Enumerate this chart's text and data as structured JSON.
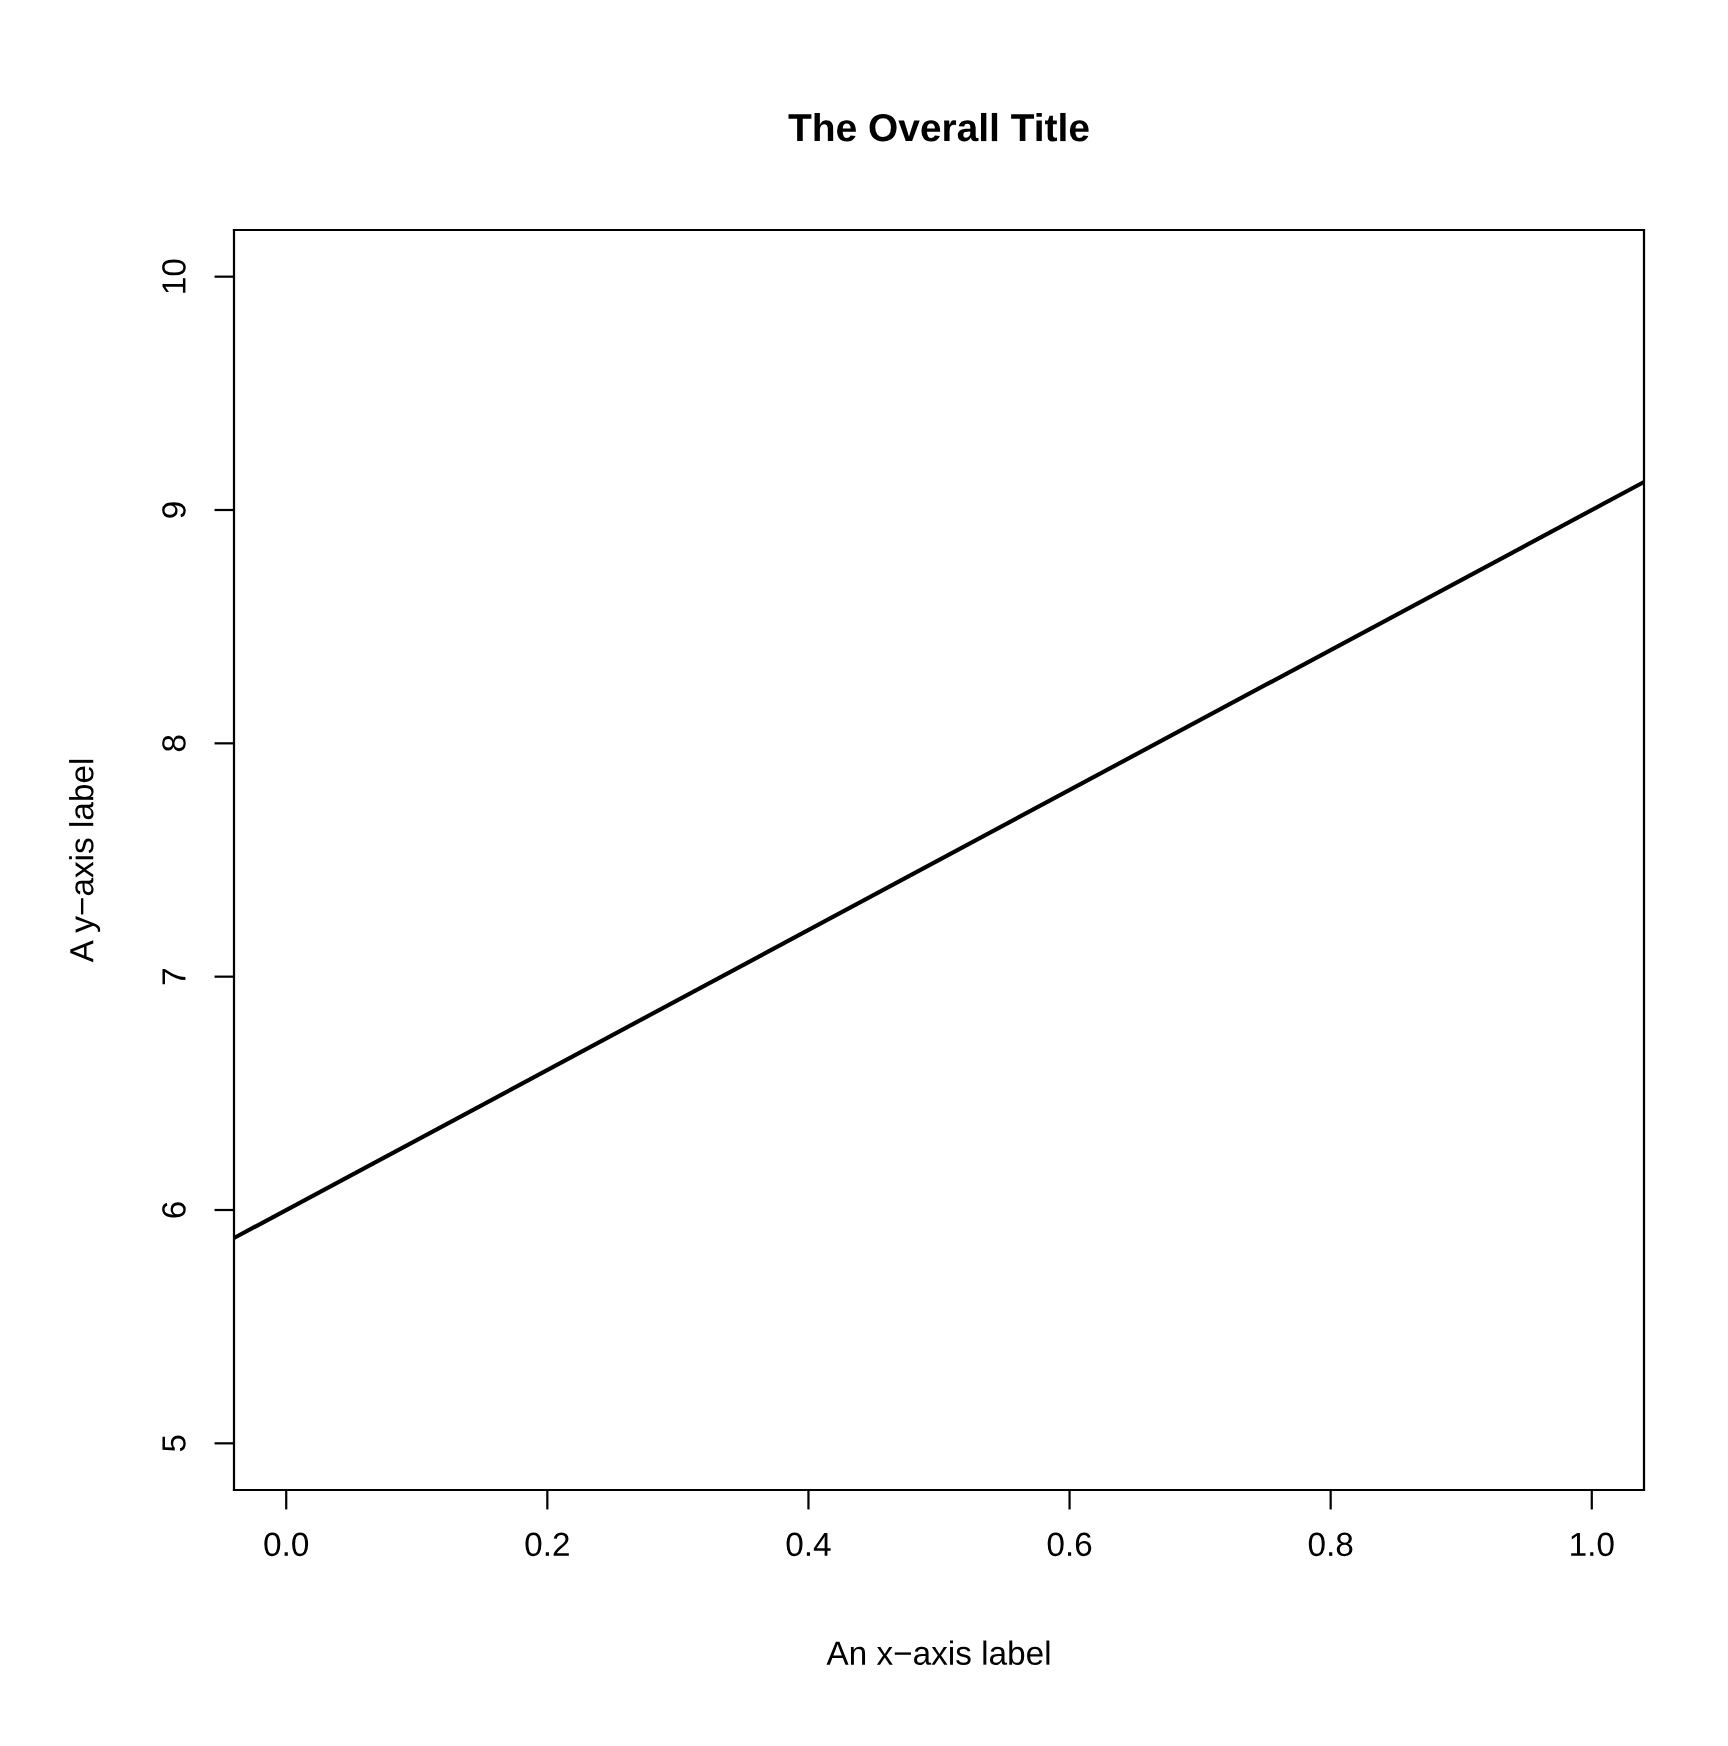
{
  "chart_data": {
    "type": "line",
    "title": "The Overall Title",
    "xlabel": "An x−axis label",
    "ylabel": "A y−axis label",
    "x": [
      -0.04,
      1.04
    ],
    "series": [
      {
        "color": "#000000",
        "values": [
          5.88,
          9.12
        ]
      }
    ],
    "xlim": [
      -0.04,
      1.04
    ],
    "ylim": [
      4.8,
      10.2
    ],
    "xticks": [
      {
        "value": 0,
        "label": "0.0"
      },
      {
        "value": 0.2,
        "label": "0.2"
      },
      {
        "value": 0.4,
        "label": "0.4"
      },
      {
        "value": 0.6,
        "label": "0.6"
      },
      {
        "value": 0.8,
        "label": "0.8"
      },
      {
        "value": 1,
        "label": "1.0"
      }
    ],
    "yticks": [
      5,
      6,
      7,
      8,
      9,
      10
    ],
    "grid": false,
    "legend": false,
    "marker": "none",
    "line_style": "solid"
  }
}
